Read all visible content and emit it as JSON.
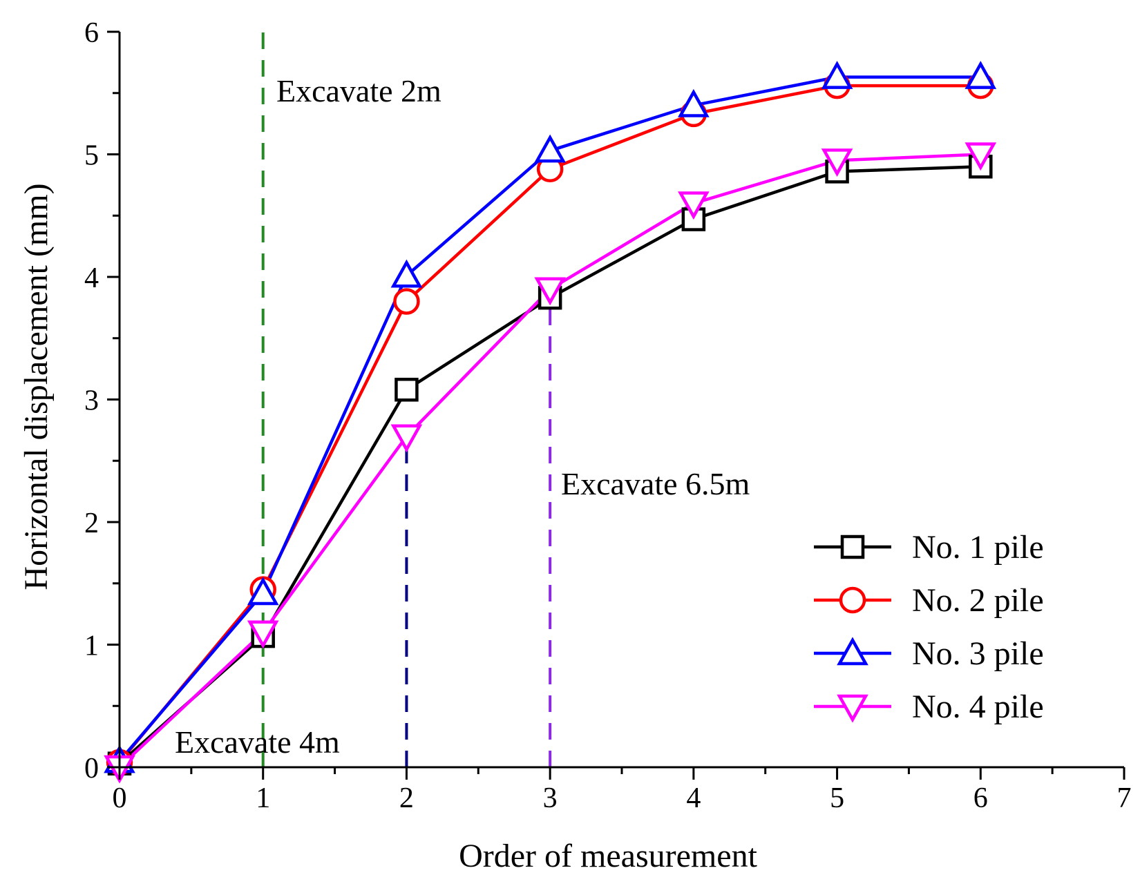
{
  "chart_data": {
    "type": "line",
    "title": "",
    "xlabel": "Order of measurement",
    "ylabel": "Horizontal displacement (mm)",
    "xlim": [
      0,
      7
    ],
    "ylim": [
      0,
      6
    ],
    "xticks": [
      "0",
      "1",
      "2",
      "3",
      "4",
      "5",
      "6",
      "7"
    ],
    "yticks": [
      "0",
      "1",
      "2",
      "3",
      "4",
      "5",
      "6"
    ],
    "grid": false,
    "legend_position": "bottom-right",
    "x": [
      0,
      1,
      2,
      3,
      4,
      5,
      6
    ],
    "series": [
      {
        "name": "No. 1 pile",
        "marker": "square",
        "color": "#000000",
        "values": [
          0.03,
          1.07,
          3.08,
          3.83,
          4.47,
          4.86,
          4.9
        ]
      },
      {
        "name": "No. 2 pile",
        "marker": "circle",
        "color": "#ff0000",
        "values": [
          0.04,
          1.45,
          3.8,
          4.88,
          5.33,
          5.56,
          5.56
        ]
      },
      {
        "name": "No. 3 pile",
        "marker": "triangle-up",
        "color": "#0000ff",
        "values": [
          0.05,
          1.42,
          4.01,
          5.03,
          5.4,
          5.63,
          5.63
        ]
      },
      {
        "name": "No. 4 pile",
        "marker": "triangle-down",
        "color": "#ff00ff",
        "values": [
          0.0,
          1.1,
          2.7,
          3.9,
          4.6,
          4.95,
          5.0
        ]
      }
    ],
    "annotations": [
      {
        "text": "Excavate 2m",
        "x": 1,
        "y_from": 0,
        "y_to": 6,
        "line_color": "#228b22"
      },
      {
        "text": "Excavate 4m",
        "x": 2,
        "y_from": 0,
        "y_to": 2.7,
        "line_color": "#000080"
      },
      {
        "text": "Excavate 6.5m",
        "x": 3,
        "y_from": 0,
        "y_to": 3.9,
        "line_color": "#8a2be2"
      }
    ]
  }
}
